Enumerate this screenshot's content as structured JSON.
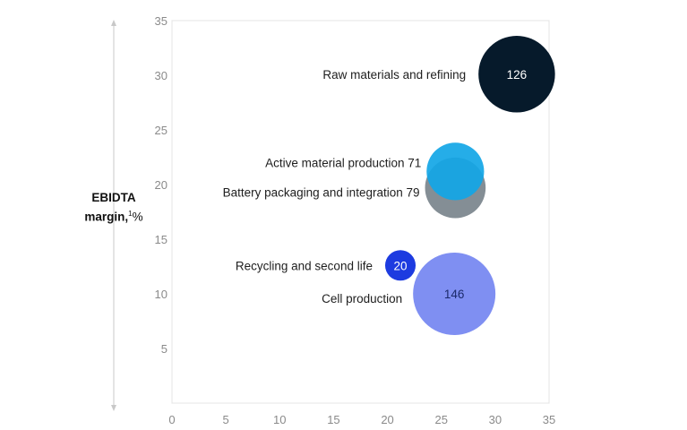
{
  "chart_data": {
    "type": "scatter",
    "ylabel": {
      "line1": "EBIDTA",
      "line2": "margin,",
      "superscript": "1",
      "unit": "%"
    },
    "xlim": [
      0,
      35
    ],
    "ylim": [
      0,
      35
    ],
    "xticks": [
      "0",
      "5",
      "10",
      "15",
      "20",
      "25",
      "30",
      "35"
    ],
    "yticks": [
      "5",
      "10",
      "15",
      "20",
      "25",
      "30",
      "35"
    ],
    "grid": false,
    "series": [
      {
        "label": "Raw materials and refining",
        "value_label": "126",
        "x": 32,
        "y": 30.1,
        "size": 126,
        "color": "#061a2b",
        "text_color": "#ffffff"
      },
      {
        "label": "Active material production 71",
        "value_label": "",
        "x": 26.3,
        "y": 21.2,
        "size": 71,
        "color": "#12a6e6",
        "text_color": "#ffffff"
      },
      {
        "label": "Battery packaging and integration 79",
        "value_label": "",
        "x": 26.3,
        "y": 19.7,
        "size": 79,
        "color": "#6f7a82",
        "text_color": "#ffffff"
      },
      {
        "label": "Recycling and second life",
        "value_label": "20",
        "x": 21.2,
        "y": 12.6,
        "size": 20,
        "color": "#1d3be0",
        "text_color": "#ffffff"
      },
      {
        "label": "Cell production",
        "value_label": "146",
        "x": 26.2,
        "y": 10.0,
        "size": 146,
        "color": "#7f8ff2",
        "text_color": "#1b2a6b"
      }
    ]
  }
}
